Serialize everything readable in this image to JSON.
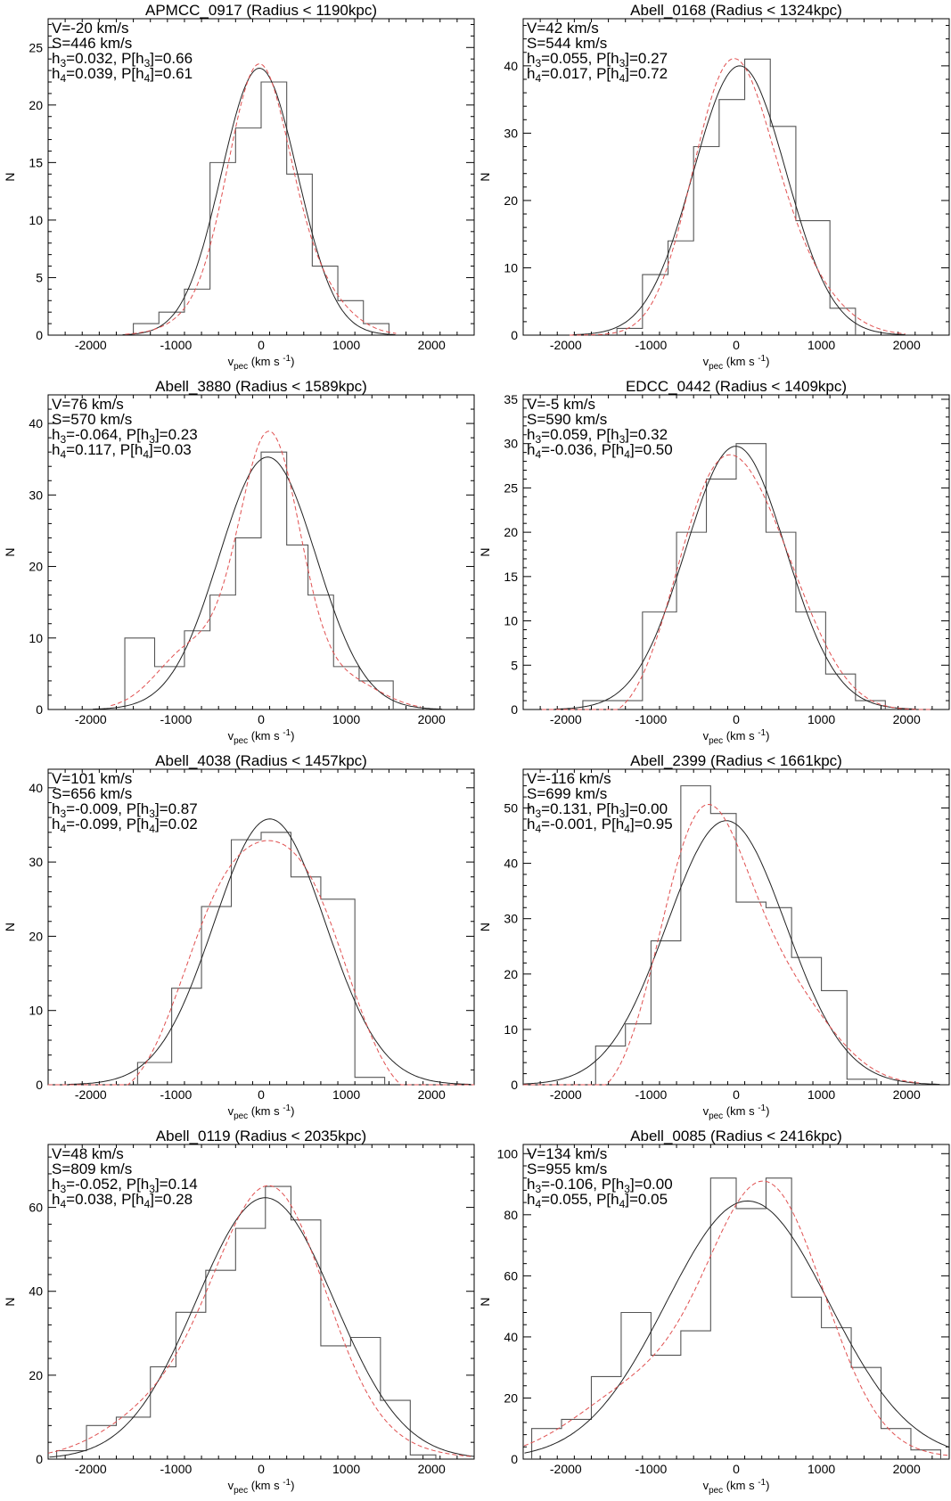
{
  "figure": {
    "description_hidden": ""
  },
  "chart_data": [
    {
      "type": "histogram",
      "title": "APMCC_0917 (Radius < 1190kpc)",
      "xlabel": "v_pec (km s^-1)",
      "ylabel": "N",
      "xlim": [
        -2500,
        2500
      ],
      "ylim": [
        0,
        27.5
      ],
      "xticks": [
        -2000,
        -1000,
        0,
        1000,
        2000
      ],
      "yticks": [
        0,
        5,
        10,
        15,
        20,
        25
      ],
      "annotations": [
        "V=-20 km/s",
        "S=446 km/s",
        "h3=0.032, P[h3]=0.66",
        "h4=0.039, P[h4]=0.61"
      ],
      "bins_edges": [
        -1500,
        -1200,
        -900,
        -600,
        -300,
        0,
        300,
        600,
        900,
        1200,
        1500
      ],
      "counts": [
        1,
        2,
        4,
        15,
        18,
        22,
        14,
        6,
        3,
        1
      ],
      "gauss_solid": {
        "mu": -20,
        "sigma": 446,
        "amp": 23.2
      },
      "gauss_dashed": {
        "mu": 0,
        "sigma": 420,
        "amp": 23.0,
        "h3": 0.032,
        "h4": 0.039
      }
    },
    {
      "type": "histogram",
      "title": "Abell_0168 (Radius < 1324kpc)",
      "xlabel": "v_pec (km s^-1)",
      "ylabel": "N",
      "xlim": [
        -2500,
        2500
      ],
      "ylim": [
        0,
        47
      ],
      "xticks": [
        -2000,
        -1000,
        0,
        1000,
        2000
      ],
      "yticks": [
        0,
        10,
        20,
        30,
        40
      ],
      "annotations": [
        "V=42 km/s",
        "S=544 km/s",
        "h3=0.055, P[h3]=0.27",
        "h4=0.017, P[h4]=0.72"
      ],
      "bins_edges": [
        -1400,
        -1100,
        -800,
        -500,
        -200,
        100,
        400,
        700,
        1100,
        1400
      ],
      "counts": [
        1,
        9,
        14,
        28,
        35,
        41,
        31,
        17,
        4
      ],
      "gauss_solid": {
        "mu": 42,
        "sigma": 544,
        "amp": 40
      },
      "gauss_dashed": {
        "mu": 20,
        "sigma": 520,
        "amp": 40.5,
        "h3": 0.055,
        "h4": 0.017
      }
    },
    {
      "type": "histogram",
      "title": "Abell_3880 (Radius < 1589kpc)",
      "xlabel": "v_pec (km s^-1)",
      "ylabel": "N",
      "xlim": [
        -2500,
        2500
      ],
      "ylim": [
        0,
        44
      ],
      "xticks": [
        -2000,
        -1000,
        0,
        1000,
        2000
      ],
      "yticks": [
        0,
        10,
        20,
        30,
        40
      ],
      "annotations": [
        "V=76 km/s",
        "S=570 km/s",
        "h3=-0.064, P[h3]=0.23",
        "h4=0.117, P[h4]=0.03"
      ],
      "bins_edges": [
        -1600,
        -1250,
        -900,
        -600,
        -300,
        0,
        300,
        550,
        850,
        1150,
        1550
      ],
      "counts": [
        10,
        6,
        11,
        16,
        24,
        36,
        23,
        16,
        6,
        4
      ],
      "gauss_solid": {
        "mu": 76,
        "sigma": 570,
        "amp": 35.3
      },
      "gauss_dashed": {
        "mu": 60,
        "sigma": 480,
        "amp": 36.2,
        "h3": -0.064,
        "h4": 0.117
      }
    },
    {
      "type": "histogram",
      "title": "EDCC_0442 (Radius < 1409kpc)",
      "xlabel": "v_pec (km s^-1)",
      "ylabel": "N",
      "xlim": [
        -2500,
        2500
      ],
      "ylim": [
        0,
        35.5
      ],
      "xticks": [
        -2000,
        -1000,
        0,
        1000,
        2000
      ],
      "yticks": [
        0,
        5,
        10,
        15,
        20,
        25,
        30,
        35
      ],
      "annotations": [
        "V=-5 km/s",
        "S=590 km/s",
        "h3=0.059, P[h3]=0.32",
        "h4=-0.036, P[h4]=0.50"
      ],
      "bins_edges": [
        -1800,
        -1100,
        -700,
        -350,
        0,
        350,
        700,
        1050,
        1400,
        1750
      ],
      "counts": [
        1,
        11,
        20,
        26,
        30,
        20,
        11,
        4,
        1
      ],
      "gauss_solid": {
        "mu": -5,
        "sigma": 590,
        "amp": 29.7
      },
      "gauss_dashed": {
        "mu": 0,
        "sigma": 600,
        "amp": 29.2,
        "h3": 0.059,
        "h4": -0.036
      }
    },
    {
      "type": "histogram",
      "title": "Abell_4038 (Radius < 1457kpc)",
      "xlabel": "v_pec (km s^-1)",
      "ylabel": "N",
      "xlim": [
        -2500,
        2500
      ],
      "ylim": [
        0,
        42.5
      ],
      "xticks": [
        -2000,
        -1000,
        0,
        1000,
        2000
      ],
      "yticks": [
        0,
        10,
        20,
        30,
        40
      ],
      "annotations": [
        "V=101 km/s",
        "S=656 km/s",
        "h3=-0.009, P[h3]=0.87",
        "h4=-0.099, P[h4]=0.02"
      ],
      "bins_edges": [
        -1450,
        -1050,
        -700,
        -350,
        0,
        350,
        700,
        1100,
        1450
      ],
      "counts": [
        3,
        13,
        24,
        33,
        34,
        28,
        25,
        1
      ],
      "gauss_solid": {
        "mu": 101,
        "sigma": 656,
        "amp": 35.8
      },
      "gauss_dashed": {
        "mu": 60,
        "sigma": 700,
        "amp": 35.0,
        "h3": -0.009,
        "h4": -0.099
      }
    },
    {
      "type": "histogram",
      "title": "Abell_2399 (Radius < 1661kpc)",
      "xlabel": "v_pec (km s^-1)",
      "ylabel": "N",
      "xlim": [
        -2500,
        2500
      ],
      "ylim": [
        0,
        57
      ],
      "xticks": [
        -2000,
        -1000,
        0,
        1000,
        2000
      ],
      "yticks": [
        0,
        10,
        20,
        30,
        40,
        50
      ],
      "annotations": [
        "V=-116 km/s",
        "S=699 km/s",
        "h3=0.131, P[h3]=0.00",
        "h4=-0.001, P[h4]=0.95"
      ],
      "bins_edges": [
        -1650,
        -1300,
        -1000,
        -650,
        -300,
        0,
        350,
        650,
        1000,
        1300,
        1650
      ],
      "counts": [
        7,
        11,
        26,
        54,
        49,
        33,
        32,
        23,
        17,
        1
      ],
      "gauss_solid": {
        "mu": -116,
        "sigma": 699,
        "amp": 47.7
      },
      "gauss_dashed": {
        "mu": -200,
        "sigma": 620,
        "amp": 49.5,
        "h3": 0.131,
        "h4": -0.001
      }
    },
    {
      "type": "histogram",
      "title": "Abell_0119 (Radius < 2035kpc)",
      "xlabel": "v_pec (km s^-1)",
      "ylabel": "N",
      "xlim": [
        -2500,
        2500
      ],
      "ylim": [
        0,
        75
      ],
      "xticks": [
        -2000,
        -1000,
        0,
        1000,
        2000
      ],
      "yticks": [
        0,
        20,
        40,
        60
      ],
      "annotations": [
        "V=48 km/s",
        "S=809 km/s",
        "h3=-0.052, P[h3]=0.14",
        "h4=0.038, P[h4]=0.28"
      ],
      "bins_edges": [
        -2400,
        -2050,
        -1700,
        -1300,
        -1000,
        -650,
        -300,
        50,
        350,
        700,
        1050,
        1400,
        1750,
        2050
      ],
      "counts": [
        2,
        8,
        10,
        22,
        35,
        45,
        55,
        65,
        57,
        27,
        29,
        14,
        1
      ],
      "gauss_solid": {
        "mu": 48,
        "sigma": 809,
        "amp": 62.3
      },
      "gauss_dashed": {
        "mu": 30,
        "sigma": 760,
        "amp": 63.5,
        "h3": -0.052,
        "h4": 0.038
      }
    },
    {
      "type": "histogram",
      "title": "Abell_0085 (Radius < 2416kpc)",
      "xlabel": "v_pec (km s^-1)",
      "ylabel": "N",
      "xlim": [
        -2500,
        2500
      ],
      "ylim": [
        0,
        103
      ],
      "xticks": [
        -2000,
        -1000,
        0,
        1000,
        2000
      ],
      "yticks": [
        0,
        20,
        40,
        60,
        80,
        100
      ],
      "annotations": [
        "V=134 km/s",
        "S=955 km/s",
        "h3=-0.106, P[h3]=0.00",
        "h4=0.055, P[h4]=0.05"
      ],
      "bins_edges": [
        -2400,
        -2050,
        -1700,
        -1350,
        -1000,
        -650,
        -300,
        0,
        350,
        650,
        1000,
        1350,
        1700,
        2050,
        2400
      ],
      "counts": [
        10,
        13,
        27,
        48,
        34,
        42,
        92,
        82,
        92,
        53,
        43,
        30,
        10,
        3
      ],
      "gauss_solid": {
        "mu": 134,
        "sigma": 955,
        "amp": 84.5
      },
      "gauss_dashed": {
        "mu": 200,
        "sigma": 850,
        "amp": 87.0,
        "h3": -0.106,
        "h4": 0.055
      }
    }
  ]
}
